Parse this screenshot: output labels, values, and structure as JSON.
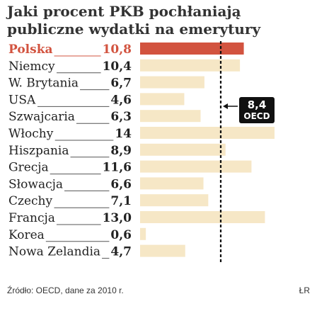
{
  "chart_data": {
    "type": "bar",
    "orientation": "horizontal",
    "title": "Jaki procent PKB pochłaniają publiczne wydatki na emerytury",
    "title_lines": [
      "Jaki procent PKB pochłaniają",
      "publiczne wydatki na emerytury"
    ],
    "categories": [
      "Polska",
      "Niemcy",
      "W. Brytania",
      "USA",
      "Szwajcaria",
      "Włochy",
      "Hiszpania",
      "Grecja",
      "Słowacja",
      "Czechy",
      "Francja",
      "Korea",
      "Nowa Zelandia"
    ],
    "value_labels": [
      "10,8",
      "10,4",
      "6,7",
      "4,6",
      "6,3",
      "14",
      "8,9",
      "11,6",
      "6,6",
      "7,1",
      "13,0",
      "0,6",
      "4,7"
    ],
    "values": [
      10.8,
      10.4,
      6.7,
      4.6,
      6.3,
      14,
      8.9,
      11.6,
      6.6,
      7.1,
      13.0,
      0.6,
      4.7
    ],
    "highlight": "Polska",
    "reference": {
      "label": "OECD",
      "value": 8.4,
      "value_label": "8,4"
    },
    "xlim": [
      0,
      14
    ],
    "colors": {
      "bar": "#f6e7c6",
      "highlight": "#d2533f",
      "highlight_text": "#d2533f",
      "reference_box": "#111111"
    },
    "source": "Źródło: OECD, dane za 2010 r.",
    "credit": "ŁR"
  }
}
